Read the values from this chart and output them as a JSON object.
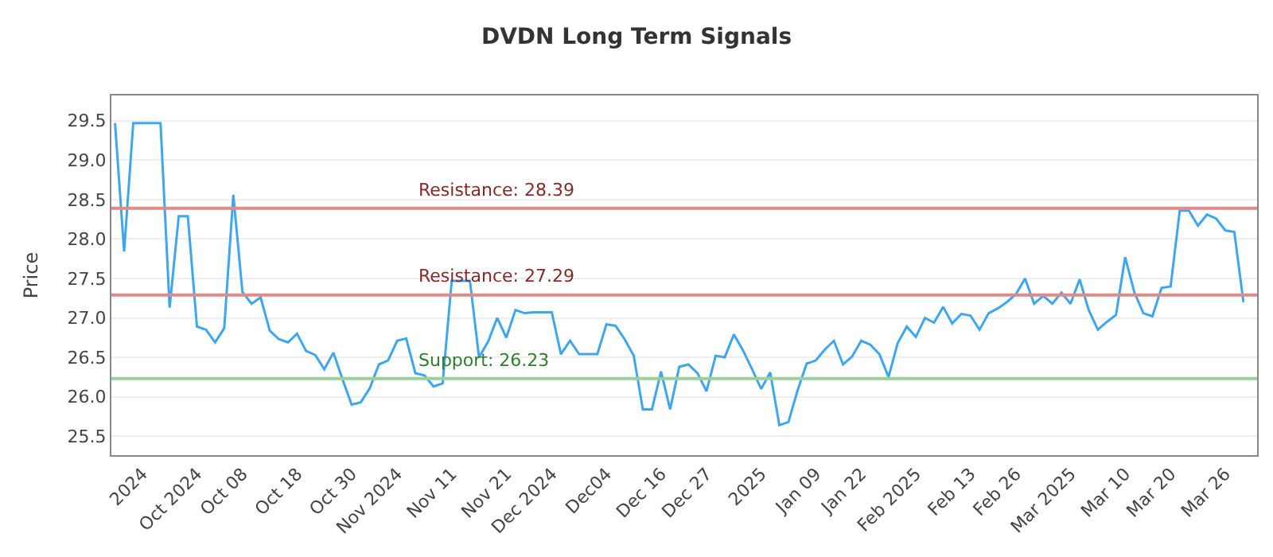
{
  "chart_data": {
    "type": "line",
    "title": "DVDN Long Term Signals",
    "ylabel": "Price",
    "categories": [
      null,
      null,
      null,
      "2024",
      null,
      null,
      null,
      null,
      null,
      "Oct 2024",
      null,
      null,
      null,
      null,
      "Oct 08",
      null,
      null,
      null,
      null,
      null,
      "Oct 18",
      null,
      null,
      null,
      null,
      null,
      "Oct 30",
      null,
      null,
      null,
      null,
      "Nov 2024",
      null,
      null,
      null,
      null,
      null,
      "Nov 11",
      null,
      null,
      null,
      null,
      null,
      "Nov 21",
      null,
      null,
      null,
      null,
      "Dec 2024",
      null,
      null,
      null,
      null,
      null,
      "Dec04",
      null,
      null,
      null,
      null,
      null,
      "Dec 16",
      null,
      null,
      null,
      null,
      "Dec 27",
      null,
      null,
      null,
      null,
      null,
      "2025",
      null,
      null,
      null,
      null,
      null,
      "Jan 09",
      null,
      null,
      null,
      null,
      "Jan 22",
      null,
      null,
      null,
      null,
      null,
      "Feb 2025",
      null,
      null,
      null,
      null,
      null,
      "Feb 13",
      null,
      null,
      null,
      null,
      "Feb 26",
      null,
      null,
      null,
      null,
      null,
      "Mar 2025",
      null,
      null,
      null,
      null,
      null,
      "Mar 10",
      null,
      null,
      null,
      null,
      "Mar 20",
      null,
      null,
      null,
      null,
      null,
      "Mar 26",
      null,
      null
    ],
    "series": [
      {
        "color": "#3ea6ee",
        "values": [
          29.47,
          27.84,
          29.47,
          29.47,
          29.47,
          29.47,
          27.13,
          28.29,
          28.29,
          26.89,
          26.85,
          26.69,
          26.87,
          28.56,
          27.33,
          27.18,
          27.26,
          26.84,
          26.73,
          26.69,
          26.8,
          26.58,
          26.53,
          26.35,
          26.56,
          26.22,
          25.9,
          25.93,
          26.11,
          26.41,
          26.46,
          26.71,
          26.74,
          26.3,
          26.27,
          26.13,
          26.17,
          27.47,
          27.47,
          27.47,
          26.5,
          26.7,
          27.0,
          26.75,
          27.1,
          27.06,
          27.07,
          27.07,
          27.07,
          26.54,
          26.71,
          26.54,
          26.54,
          26.54,
          26.92,
          26.9,
          26.73,
          26.52,
          25.84,
          25.84,
          26.32,
          25.84,
          26.38,
          26.41,
          26.3,
          26.07,
          26.52,
          26.5,
          26.79,
          26.59,
          26.35,
          26.1,
          26.31,
          25.64,
          25.68,
          26.08,
          26.42,
          26.46,
          26.6,
          26.71,
          26.41,
          26.51,
          26.71,
          26.66,
          26.54,
          26.25,
          26.68,
          26.89,
          26.76,
          27.0,
          26.94,
          27.14,
          26.93,
          27.05,
          27.03,
          26.85,
          27.06,
          27.12,
          27.2,
          27.3,
          27.5,
          27.18,
          27.28,
          27.18,
          27.32,
          27.18,
          27.49,
          27.1,
          26.85,
          26.95,
          27.04,
          27.77,
          27.33,
          27.06,
          27.02,
          27.38,
          27.4,
          28.36,
          28.36,
          28.17,
          28.31,
          28.26,
          28.11,
          28.09,
          27.2
        ]
      }
    ],
    "ylim": [
      25.26,
      29.82
    ],
    "yticks": [
      25.5,
      {
        "value": 26,
        "label": "26.0"
      },
      26.5,
      {
        "value": 27,
        "label": "27.0"
      },
      27.5,
      {
        "value": 28,
        "label": "28.0"
      },
      28.5,
      {
        "value": 29,
        "label": "29.0"
      },
      29.5
    ],
    "grid": "y",
    "marker": "none",
    "line_style": "solid",
    "ref_lines": [
      {
        "axis": "y",
        "value": 28.39,
        "label": "Resistance: 28.39",
        "color": "#e08a8a"
      },
      {
        "axis": "y",
        "value": 27.29,
        "label": "Resistance: 27.29",
        "color": "#e08a8a"
      },
      {
        "axis": "y",
        "value": 26.23,
        "label": "Support: 26.23",
        "color": "#99d199"
      }
    ]
  }
}
